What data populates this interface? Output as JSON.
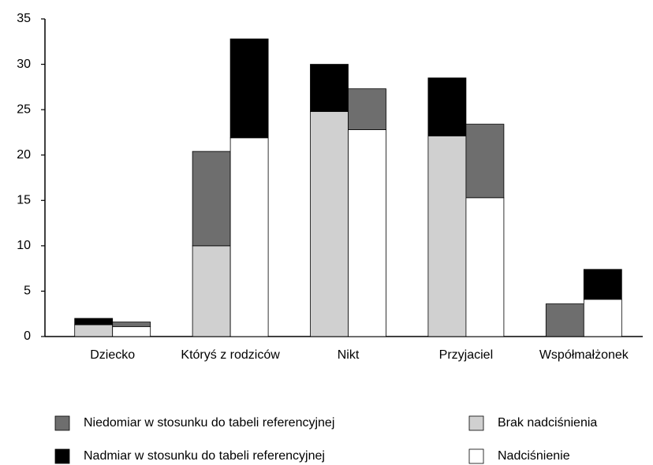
{
  "chart_data": {
    "type": "grouped-stacked-bar",
    "categories": [
      "Dziecko",
      "Któryś z rodziców",
      "Nikt",
      "Przyjaciel",
      "Współmałżonek"
    ],
    "series": [
      {
        "name": "Brak nadciśnienia",
        "color": "#d0d0d0",
        "values": [
          [
            1.3,
            null
          ],
          [
            10,
            null
          ],
          [
            24.8,
            null
          ],
          [
            22.1,
            null
          ],
          [
            0,
            null
          ]
        ]
      },
      {
        "name": "Nadciśnienie",
        "color": "#ffffff",
        "values": [
          [
            null,
            1.1
          ],
          [
            null,
            21.9
          ],
          [
            null,
            22.8
          ],
          [
            null,
            15.3
          ],
          [
            null,
            4.1
          ]
        ]
      },
      {
        "name": "Niedomiar w stosunku do tabeli referencyjnej",
        "color": "#6e6e6e",
        "values": [
          [
            0,
            0.5
          ],
          [
            10.4,
            0
          ],
          [
            0,
            4.5
          ],
          [
            0,
            8.1
          ],
          [
            3.6,
            0
          ]
        ]
      },
      {
        "name": "Nadmiar w stosunku do tabeli referencyjnej",
        "color": "#000000",
        "values": [
          [
            0.7,
            0
          ],
          [
            0,
            10.9
          ],
          [
            5.2,
            0
          ],
          [
            6.4,
            0
          ],
          [
            0,
            3.3
          ]
        ]
      }
    ],
    "ylim": [
      0,
      35
    ],
    "yticks": [
      0,
      5,
      10,
      15,
      20,
      25,
      30,
      35
    ]
  }
}
